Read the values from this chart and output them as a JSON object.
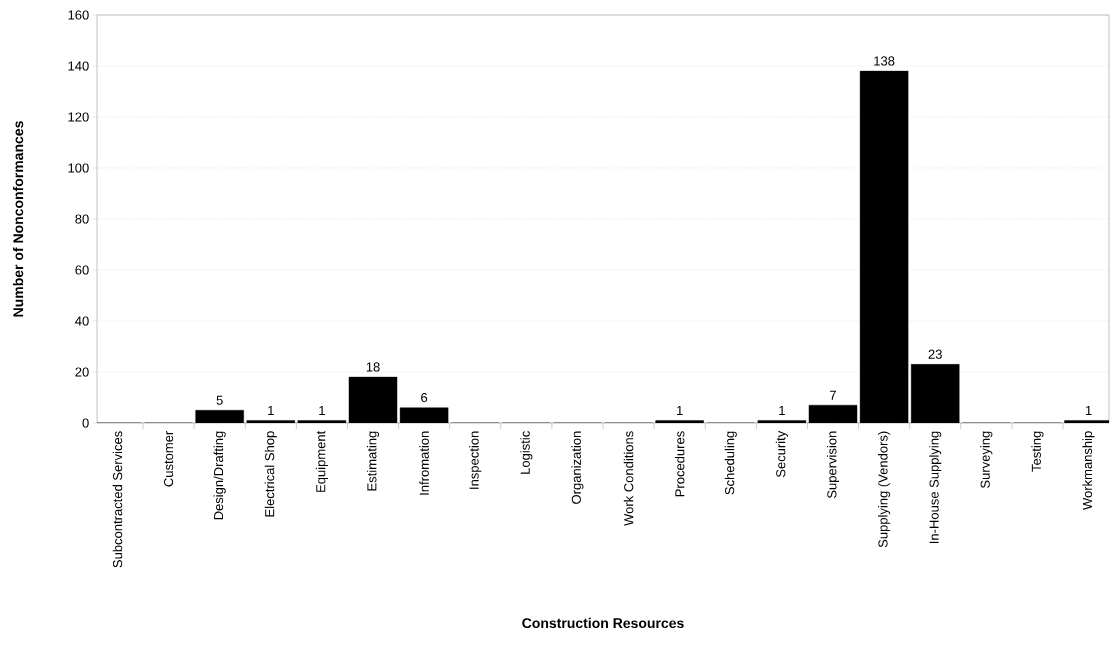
{
  "chart_data": {
    "type": "bar",
    "xlabel": "Construction Resources",
    "ylabel": "Number of Nonconformances",
    "categories": [
      "Subcontracted Services",
      "Customer",
      "Design/Drafting",
      "Electrical Shop",
      "Equipment",
      "Estimating",
      "Infromation",
      "Inspection",
      "Logistic",
      "Organization",
      "Work Conditions",
      "Procedures",
      "Scheduling",
      "Security",
      "Supervision",
      "Supplying (Vendors)",
      "In-House Supplying",
      "Surveying",
      "Testing",
      "Workmanship"
    ],
    "values": [
      0,
      0,
      5,
      1,
      1,
      18,
      6,
      0,
      0,
      0,
      0,
      1,
      0,
      1,
      7,
      138,
      23,
      0,
      0,
      1
    ],
    "value_labels": [
      null,
      null,
      "5",
      "1",
      "1",
      "18",
      "6",
      null,
      null,
      null,
      null,
      "1",
      null,
      "1",
      "7",
      "138",
      "23",
      null,
      null,
      "1"
    ],
    "color": "#000000",
    "ylim": [
      0,
      160
    ],
    "yticks": [
      0,
      20,
      40,
      60,
      80,
      100,
      120,
      140,
      160
    ],
    "grid": "y"
  }
}
